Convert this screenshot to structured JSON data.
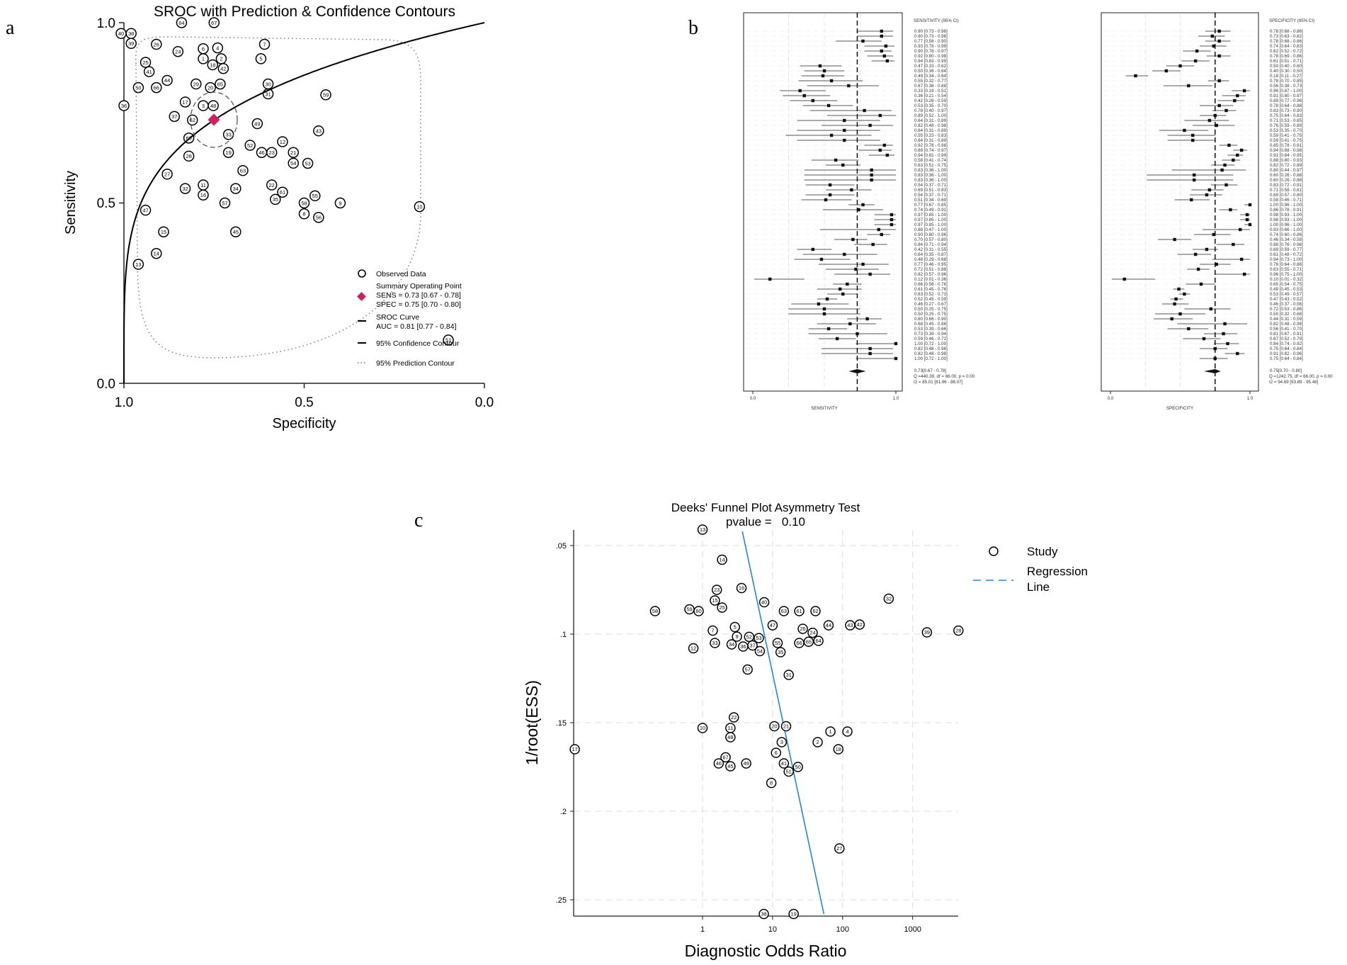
{
  "panel_labels": {
    "a": "a",
    "b": "b",
    "c": "c"
  },
  "chart_data": [
    {
      "type": "scatter",
      "title": "SROC with Prediction & Confidence Contours",
      "xlabel": "Specificity",
      "ylabel": "Sensitivity",
      "xlim": [
        1.0,
        0.0
      ],
      "ylim": [
        0.0,
        1.0
      ],
      "xticks": [
        "1.0",
        "0.5",
        "0.0"
      ],
      "yticks": [
        "0.0",
        "0.5",
        "1.0"
      ],
      "summary_point": {
        "sens": 0.73,
        "spec": 0.75
      },
      "points_source": "study estimates from forest plot (panel b)",
      "legend": {
        "observed": "Observed Data",
        "summary_title": "Summary Operating Point",
        "summary_sens": "SENS = 0.73 [0.67 - 0.78]",
        "summary_spec": "SPEC = 0.75 [0.70 - 0.80]",
        "curve_title": "SROC Curve",
        "curve_auc": "AUC = 0.81 [0.77 - 0.84]",
        "confidence": "95% Confidence Contour",
        "prediction": "95% Prediction Contour"
      },
      "colors": {
        "summary": "#d81b60",
        "curve": "#000000"
      }
    },
    {
      "type": "forest",
      "sensitivity": {
        "header": "SENSITIVITY (95% CI)",
        "axis_label": "SENSITIVITY",
        "xticks": [
          "0.0",
          "1.0"
        ],
        "pooled": 0.73,
        "rows": [
          "0.90 [0.73 - 0.98]",
          "0.90 [0.73 - 0.98]",
          "0.77 [0.58 - 0.90]",
          "0.93 [0.78 - 0.99]",
          "0.90 [0.78 - 0.97]",
          "0.92 [0.80 - 0.98]",
          "0.94 [0.83 - 0.99]",
          "0.47 [0.33 - 0.62]",
          "0.50 [0.36 - 0.64]",
          "0.49 [0.34 - 0.64]",
          "0.55 [0.32 - 0.77]",
          "0.67 [0.38 - 0.88]",
          "0.33 [0.19 - 0.51]",
          "0.36 [0.21 - 0.54]",
          "0.42 [0.26 - 0.59]",
          "0.53 [0.35 - 0.70]",
          "0.78 [0.40 - 0.97]",
          "0.89 [0.52 - 1.00]",
          "0.64 [0.31 - 0.89]",
          "0.82 [0.48 - 0.98]",
          "0.64 [0.31 - 0.89]",
          "0.55 [0.23 - 0.83]",
          "0.64 [0.31 - 0.89]",
          "0.92 [0.78 - 0.98]",
          "0.89 [0.74 - 0.97]",
          "0.94 [0.81 - 0.99]",
          "0.58 [0.41 - 0.74]",
          "0.63 [0.51 - 0.75]",
          "0.83 [0.36 - 1.00]",
          "0.83 [0.36 - 1.00]",
          "0.83 [0.36 - 1.00]",
          "0.54 [0.37 - 0.71]",
          "0.69 [0.51 - 0.83]",
          "0.54 [0.37 - 0.71]",
          "0.51 [0.34 - 0.69]",
          "0.77 [0.67 - 0.85]",
          "0.74 [0.49 - 0.91]",
          "0.97 [0.85 - 1.00]",
          "0.97 [0.85 - 1.00]",
          "0.97 [0.85 - 1.00]",
          "0.88 [0.47 - 1.00]",
          "0.90 [0.80 - 0.96]",
          "0.70 [0.57 - 0.80]",
          "0.84 [0.71 - 0.94]",
          "0.42 [0.31 - 0.55]",
          "0.64 [0.35 - 0.87]",
          "0.48 [0.29 - 0.68]",
          "0.77 [0.46 - 0.95]",
          "0.72 [0.51 - 0.88]",
          "0.82 [0.57 - 0.96]",
          "0.12 [0.01 - 0.36]",
          "0.66 [0.56 - 0.76]",
          "0.61 [0.45 - 0.76]",
          "0.63 [0.52 - 0.73]",
          "0.52 [0.45 - 0.59]",
          "0.46 [0.27 - 0.67]",
          "0.50 [0.25 - 0.75]",
          "0.50 [0.25 - 0.75]",
          "0.80 [0.66 - 0.90]",
          "0.68 [0.45 - 0.86]",
          "0.53 [0.39 - 0.66]",
          "0.73 [0.39 - 0.94]",
          "0.59 [0.46 - 0.72]",
          "1.00 [0.72 - 1.00]",
          "0.82 [0.48 - 0.98]",
          "0.82 [0.48 - 0.98]",
          "1.00 [0.72 - 1.00]"
        ],
        "summary": "0.73[0.67 - 0.78]",
        "q": "Q =440.39, df = 66.00, p =  0.00",
        "i2": "I2 = 85.01 [81.96 - 88.07]"
      },
      "specificity": {
        "header": "SPECIFICITY (95% CI)",
        "axis_label": "SPECIFICITY",
        "xticks": [
          "0.0",
          "1.0"
        ],
        "pooled": 0.75,
        "rows": [
          "0.78 [0.68 - 0.86]",
          "0.73 [0.63 - 0.82]",
          "0.78 [0.68 - 0.86]",
          "0.74 [0.64 - 0.83]",
          "0.62 [0.52 - 0.72]",
          "0.78 [0.69 - 0.86]",
          "0.61 [0.51 - 0.71]",
          "0.50 [0.40 - 0.60]",
          "0.40 [0.30 - 0.50]",
          "0.18 [0.11 - 0.27]",
          "0.78 [0.70 - 0.85]",
          "0.56 [0.38 - 0.73]",
          "0.96 [0.87 - 1.00]",
          "0.91 [0.80 - 0.97]",
          "0.89 [0.77 - 0.96]",
          "0.78 [0.64 - 0.88]",
          "0.83 [0.73 - 0.90]",
          "0.75 [0.64 - 0.83]",
          "0.71 [0.53 - 0.85]",
          "0.76 [0.59 - 0.89]",
          "0.53 [0.35 - 0.70]",
          "0.59 [0.41 - 0.75]",
          "0.59 [0.41 - 0.75]",
          "0.85 [0.78 - 0.91]",
          "0.94 [0.88 - 0.98]",
          "0.91 [0.84 - 0.95]",
          "0.88 [0.80 - 0.93]",
          "0.82 [0.72 - 0.89]",
          "0.80 [0.44 - 0.97]",
          "0.60 [0.26 - 0.88]",
          "0.60 [0.26 - 0.88]",
          "0.83 [0.72 - 0.91]",
          "0.71 [0.58 - 0.81]",
          "0.69 [0.57 - 0.80]",
          "0.58 [0.46 - 0.71]",
          "1.00 [0.96 - 1.00]",
          "0.86 [0.78 - 0.91]",
          "0.98 [0.93 - 1.00]",
          "0.98 [0.93 - 1.00]",
          "1.00 [0.96 - 1.00]",
          "0.93 [0.66 - 1.00]",
          "0.74 [0.60 - 0.86]",
          "0.46 [0.34 - 0.58]",
          "0.88 [0.76 - 0.96]",
          "0.69 [0.59 - 0.77]",
          "0.61 [0.48 - 0.72]",
          "0.94 [0.73 - 1.00]",
          "0.76 [0.64 - 0.86]",
          "0.63 [0.55 - 0.71]",
          "0.96 [0.75 - 1.00]",
          "0.10 [0.01 - 0.32]",
          "0.65 [0.54 - 0.75]",
          "0.49 [0.45 - 0.53]",
          "0.53 [0.49 - 0.57]",
          "0.47 [0.43 - 0.52]",
          "0.46 [0.37 - 0.56]",
          "0.72 [0.53 - 0.86]",
          "0.50 [0.32 - 0.68]",
          "0.44 [0.31 - 0.59]",
          "0.82 [0.48 - 0.98]",
          "0.56 [0.41 - 0.70]",
          "0.81 [0.67 - 0.91]",
          "0.67 [0.52 - 0.79]",
          "0.84 [0.74 - 0.92]",
          "0.75 [0.64 - 0.84]",
          "0.91 [0.82 - 0.96]",
          "0.75 [0.64 - 0.84]"
        ],
        "summary": "0.75[0.70 - 0.80]",
        "q": "Q =1242.75, df = 66.00, p =  0.00",
        "i2": "I2 = 94.69 [93.89 - 95.48]"
      }
    },
    {
      "type": "scatter",
      "title": "Deeks' Funnel Plot Asymmetry Test",
      "subtitle": "pvalue =   0.10",
      "xlabel": "Diagnostic Odds Ratio",
      "ylabel": "1/root(ESS)",
      "xscale": "log",
      "xlim_log10": [
        -1.84,
        3.65
      ],
      "ylim": [
        0.259,
        0.041
      ],
      "xticks": [
        "1",
        "10",
        "100",
        "1000"
      ],
      "xtick_values": [
        1,
        10,
        100,
        1000
      ],
      "yticks": [
        ".05",
        ".1",
        ".15",
        ".2",
        ".25"
      ],
      "ytick_values": [
        0.05,
        0.1,
        0.15,
        0.2,
        0.25
      ],
      "legend": {
        "study": "Study",
        "regression_1": "Regression",
        "regression_2": "Line"
      },
      "regression_line": [
        [
          3.7,
          0.042
        ],
        [
          54,
          0.258
        ]
      ],
      "colors": {
        "regression": "#1e88e5"
      },
      "points": [
        [
          "13",
          1.0,
          0.041
        ],
        [
          "14",
          1.9,
          0.058
        ],
        [
          "23",
          1.6,
          0.075
        ],
        [
          "16",
          3.6,
          0.074
        ],
        [
          "15",
          1.5,
          0.081
        ],
        [
          "25",
          1.9,
          0.085
        ],
        [
          "40",
          7.6,
          0.082
        ],
        [
          "58",
          0.21,
          0.087
        ],
        [
          "59",
          0.65,
          0.086
        ],
        [
          "60",
          0.88,
          0.087
        ],
        [
          "63",
          14.5,
          0.087
        ],
        [
          "61",
          24,
          0.087
        ],
        [
          "62",
          41,
          0.087
        ],
        [
          "32",
          455,
          0.08
        ],
        [
          "5",
          2.9,
          0.096
        ],
        [
          "47",
          10,
          0.095
        ],
        [
          "7",
          1.4,
          0.098
        ],
        [
          "9",
          3.1,
          0.099
        ],
        [
          "26",
          27,
          0.097
        ],
        [
          "44",
          63,
          0.095
        ],
        [
          "43",
          128,
          0.095
        ],
        [
          "42",
          168,
          0.095
        ],
        [
          "39",
          1600,
          0.099
        ],
        [
          "28",
          4500,
          0.098
        ],
        [
          "33",
          1.5,
          0.105
        ],
        [
          "34",
          2.6,
          0.105
        ],
        [
          "12",
          0.74,
          0.108
        ],
        [
          "36",
          3.8,
          0.107
        ],
        [
          "37",
          4.4,
          0.108
        ],
        [
          "52",
          5.2,
          0.105
        ],
        [
          "53",
          5.8,
          0.105
        ],
        [
          "54",
          5.6,
          0.108
        ],
        [
          "55",
          11.8,
          0.105
        ],
        [
          "35",
          13,
          0.107
        ],
        [
          "66",
          24,
          0.105
        ],
        [
          "65",
          32,
          0.105
        ],
        [
          "64",
          40,
          0.105
        ],
        [
          "24",
          41,
          0.102
        ],
        [
          "57",
          4.4,
          0.12
        ],
        [
          "31",
          17,
          0.123
        ],
        [
          "22",
          2.8,
          0.147
        ],
        [
          "10",
          1.0,
          0.153
        ],
        [
          "11",
          2.5,
          0.153
        ],
        [
          "48",
          2.5,
          0.155
        ],
        [
          "20",
          10.6,
          0.152
        ],
        [
          "21",
          15.6,
          0.152
        ],
        [
          "1",
          67,
          0.155
        ],
        [
          "4",
          117,
          0.155
        ],
        [
          "3",
          13.5,
          0.161
        ],
        [
          "2",
          44,
          0.161
        ],
        [
          "18",
          87,
          0.165
        ],
        [
          "6",
          11.2,
          0.167
        ],
        [
          "17",
          0.015,
          0.165
        ],
        [
          "46",
          1.7,
          0.173
        ],
        [
          "67",
          1.9,
          0.173
        ],
        [
          "45",
          2.5,
          0.173
        ],
        [
          "49",
          4.2,
          0.173
        ],
        [
          "41",
          14.5,
          0.173
        ],
        [
          "51",
          17,
          0.176
        ],
        [
          "50",
          23,
          0.175
        ],
        [
          "8",
          9.6,
          0.184
        ],
        [
          "27",
          90,
          0.221
        ],
        [
          "38",
          7.5,
          0.258
        ],
        [
          "19",
          20,
          0.258
        ]
      ]
    }
  ]
}
